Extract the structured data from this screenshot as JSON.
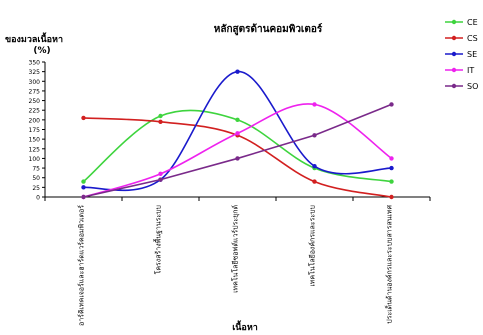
{
  "chart_data": {
    "type": "line",
    "title": "หลักสูตรด้านคอมพิวเตอร์",
    "ylabel": "ของมวลเนื้อหา",
    "yunit": "(%)",
    "xlabel": "เนื้อหา",
    "categories": [
      "อาร์คิเทคเจอร์และฮาร์ดแวร์คอมพิวเตอร์",
      "โครงสร้างพื้นฐานระบบ",
      "เทคโนโลยีซอฟต์แวร์ประยุกต์",
      "เทคโนโลยีองค์กรและระบบ",
      "ประเด็นด้านองค์กรและระบบสารสนเทศ"
    ],
    "ylim": [
      0,
      350
    ],
    "yticks": [
      0,
      25,
      50,
      75,
      100,
      125,
      150,
      175,
      200,
      225,
      250,
      275,
      300,
      325,
      350
    ],
    "yticklabels": [
      "0",
      "25",
      "50",
      "75",
      "100",
      "125",
      "150",
      "175",
      "200",
      "225",
      "250",
      "275",
      "300",
      "325",
      "350"
    ],
    "grid": false,
    "legend": "right",
    "series": [
      {
        "name": "CE",
        "color": "#3ed43e",
        "values": [
          40,
          210,
          200,
          75,
          40
        ]
      },
      {
        "name": "CS",
        "color": "#d22020",
        "values": [
          205,
          195,
          160,
          40,
          0
        ]
      },
      {
        "name": "SE",
        "color": "#1a1acc",
        "values": [
          25,
          45,
          325,
          80,
          75
        ]
      },
      {
        "name": "IT",
        "color": "#ee22ee",
        "values": [
          0,
          60,
          165,
          240,
          100
        ]
      },
      {
        "name": "SO",
        "color": "#7a2a8a",
        "values": [
          0,
          45,
          100,
          160,
          240
        ]
      }
    ]
  }
}
